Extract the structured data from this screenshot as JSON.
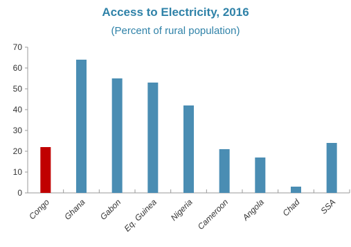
{
  "chart_data": {
    "type": "bar",
    "title": "Access to Electricity, 2016",
    "subtitle": "(Percent of rural population)",
    "xlabel": "",
    "ylabel": "",
    "categories": [
      "Congo",
      "Ghana",
      "Gabon",
      "Eq. Guinea",
      "Nigeria",
      "Cameroon",
      "Angola",
      "Chad",
      "SSA"
    ],
    "values": [
      22,
      64,
      55,
      53,
      42,
      21,
      17,
      3,
      24
    ],
    "ylim": [
      0,
      70
    ],
    "yticks": [
      0,
      10,
      20,
      30,
      40,
      50,
      60,
      70
    ],
    "grid": false,
    "colors": {
      "default": "#4a8db3",
      "highlight": "#c00000"
    },
    "highlight_category": "Congo"
  }
}
